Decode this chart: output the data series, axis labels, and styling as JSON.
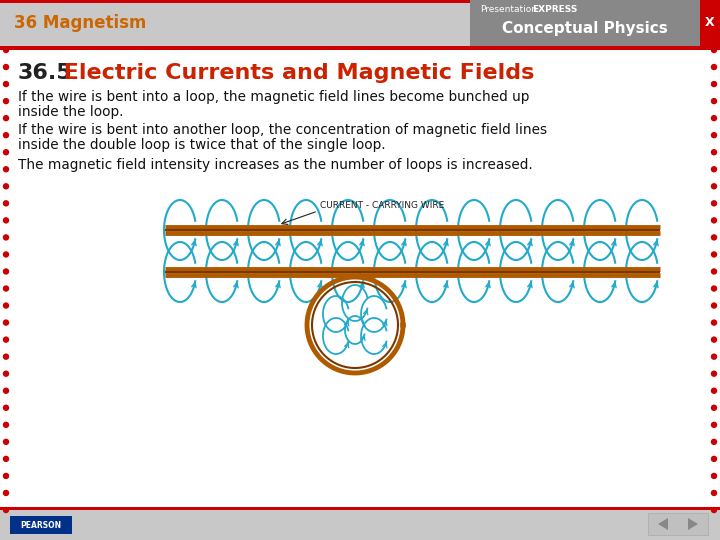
{
  "header_text": "36 Magnetism",
  "header_bg": "#c8c8c8",
  "header_red_stripe": "#cc0000",
  "header_text_color": "#cc6600",
  "brand_text1": "Presentation",
  "brand_text1b": "EXPRESS",
  "brand_text2": "Conceptual Physics",
  "title_number": "36.5",
  "title_text": " Electric Currents and Magnetic Fields",
  "title_color": "#cc2200",
  "body_color": "#111111",
  "body_lines": [
    "If the wire is bent into a loop, the magnetic field lines become bunched up",
    "inside the loop.",
    "If the wire is bent into another loop, the concentration of magnetic field lines",
    "inside the double loop is twice that of the single loop.",
    "The magnetic field intensity increases as the number of loops is increased."
  ],
  "slide_bg": "#ffffff",
  "dot_color": "#cc0000",
  "wire_color": "#b05a00",
  "field_line_color": "#22aacc",
  "label_text": "CURRENT - CARRYING WIRE",
  "footer_bg": "#c8c8c8"
}
